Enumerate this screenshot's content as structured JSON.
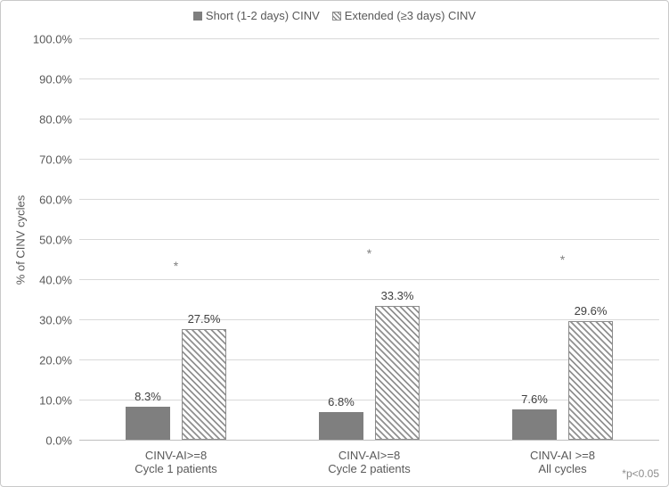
{
  "chart_data": {
    "type": "bar",
    "title": "",
    "ylabel": "% of CINV cycles",
    "xlabel": "",
    "ylim": [
      0,
      100
    ],
    "ytick_step": 10,
    "ytick_labels": [
      "0.0%",
      "10.0%",
      "20.0%",
      "30.0%",
      "40.0%",
      "50.0%",
      "60.0%",
      "70.0%",
      "80.0%",
      "90.0%",
      "100.0%"
    ],
    "grid": true,
    "legend_position": "top",
    "categories": [
      {
        "line1": "CINV-AI>=8",
        "line2": "Cycle 1 patients"
      },
      {
        "line1": "CINV-AI>=8",
        "line2": "Cycle 2 patients"
      },
      {
        "line1": "CINV-AI >=8",
        "line2": "All cycles"
      }
    ],
    "series": [
      {
        "name": "Short (1-2 days) CINV",
        "style": "solid",
        "color": "#7f7f7f",
        "values": [
          8.3,
          6.8,
          7.6
        ],
        "data_labels": [
          "8.3%",
          "6.8%",
          "7.6%"
        ]
      },
      {
        "name": "Extended (≥3 days) CINV",
        "style": "hatched",
        "color": "#8c8c8c",
        "fill": "diagonal-hatch",
        "values": [
          27.5,
          33.3,
          29.6
        ],
        "data_labels": [
          "27.5%",
          "33.3%",
          "29.6%"
        ]
      }
    ],
    "annotations": [
      {
        "text": "*",
        "group_index": 0,
        "y_pct": 42
      },
      {
        "text": "*",
        "group_index": 1,
        "y_pct": 45.2
      },
      {
        "text": "*",
        "group_index": 2,
        "y_pct": 43.5
      }
    ],
    "footnote": "*p<0.05"
  },
  "colors": {
    "bar_solid": "#7f7f7f",
    "bar_hatch_line": "#909090",
    "gridline": "#d9d9d9",
    "axis_line": "#bfbfbf",
    "axis_text": "#595959",
    "data_label_text": "#404040",
    "footnote_text": "#8c8c8c",
    "background": "#ffffff"
  }
}
